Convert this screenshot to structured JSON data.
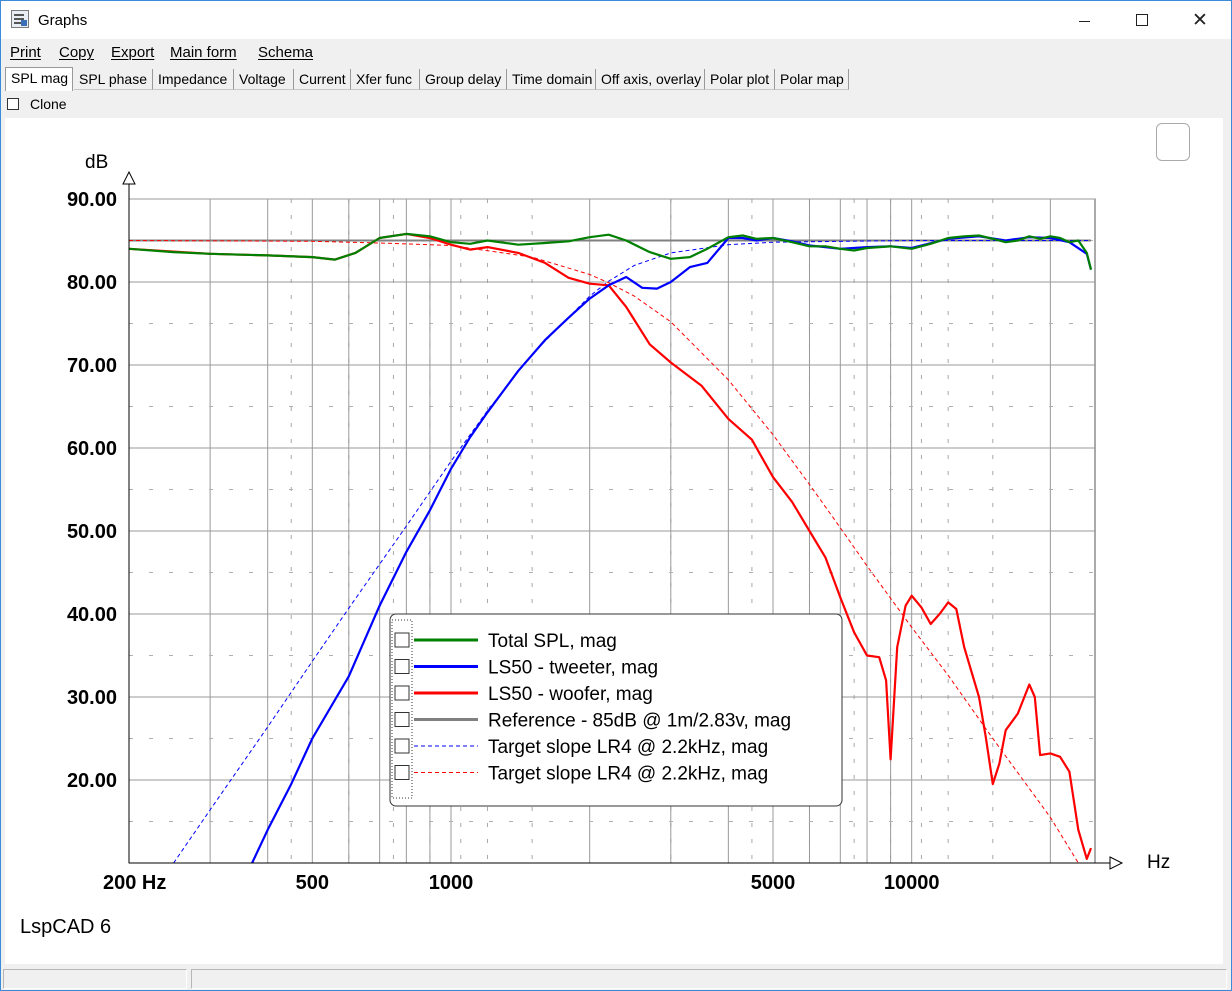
{
  "window": {
    "title": "Graphs",
    "icon": "graphs-app-icon",
    "controls": [
      "minimize",
      "maximize",
      "close"
    ]
  },
  "menu": [
    "Print",
    "Copy",
    "Export",
    "Main form",
    "Schema"
  ],
  "tabs": [
    "SPL mag",
    "SPL phase",
    "Impedance",
    "Voltage",
    "Current",
    "Xfer func",
    "Group delay",
    "Time domain",
    "Off axis, overlay",
    "Polar plot",
    "Polar map"
  ],
  "active_tab": "SPL mag",
  "clone": {
    "label": "Clone",
    "checked": false
  },
  "footer_text": "LspCAD 6",
  "chart_data": {
    "type": "line",
    "ylabel": "dB",
    "xlabel": "Hz",
    "x_scale": "log",
    "xlim": [
      200,
      25000
    ],
    "ylim": [
      10,
      90
    ],
    "grid": true,
    "y_ticks": [
      "90.00",
      "80.00",
      "70.00",
      "60.00",
      "50.00",
      "40.00",
      "30.00",
      "20.00"
    ],
    "x_ticks": [
      {
        "value": 200,
        "label": "200 Hz"
      },
      {
        "value": 500,
        "label": "500"
      },
      {
        "value": 1000,
        "label": "1000"
      },
      {
        "value": 5000,
        "label": "5000"
      },
      {
        "value": 10000,
        "label": "10000"
      }
    ],
    "legend_position": "bottom-center",
    "series": [
      {
        "name": "Total SPL, mag",
        "color": "#008000",
        "style": "solid",
        "points": [
          [
            200,
            84
          ],
          [
            250,
            83.6
          ],
          [
            300,
            83.4
          ],
          [
            400,
            83.2
          ],
          [
            500,
            83
          ],
          [
            560,
            82.7
          ],
          [
            620,
            83.5
          ],
          [
            700,
            85.3
          ],
          [
            800,
            85.8
          ],
          [
            900,
            85.5
          ],
          [
            1000,
            84.8
          ],
          [
            1100,
            84.6
          ],
          [
            1200,
            85
          ],
          [
            1400,
            84.5
          ],
          [
            1600,
            84.7
          ],
          [
            1800,
            84.9
          ],
          [
            2000,
            85.4
          ],
          [
            2200,
            85.7
          ],
          [
            2400,
            85
          ],
          [
            2700,
            83.6
          ],
          [
            3000,
            82.8
          ],
          [
            3300,
            83
          ],
          [
            3600,
            84
          ],
          [
            4000,
            85.4
          ],
          [
            4300,
            85.6
          ],
          [
            4600,
            85.2
          ],
          [
            5000,
            85.3
          ],
          [
            5500,
            84.8
          ],
          [
            6000,
            84.3
          ],
          [
            6500,
            84.3
          ],
          [
            7000,
            84
          ],
          [
            7500,
            83.8
          ],
          [
            8000,
            84.1
          ],
          [
            9000,
            84.3
          ],
          [
            10000,
            84
          ],
          [
            11000,
            84.6
          ],
          [
            12000,
            85.3
          ],
          [
            13000,
            85.5
          ],
          [
            14000,
            85.6
          ],
          [
            15000,
            85.2
          ],
          [
            16000,
            84.8
          ],
          [
            17000,
            85
          ],
          [
            18000,
            85.5
          ],
          [
            19000,
            85.2
          ],
          [
            20000,
            85.5
          ],
          [
            21000,
            85.3
          ],
          [
            22000,
            84.8
          ],
          [
            23000,
            85
          ],
          [
            24000,
            83.5
          ],
          [
            24500,
            81.5
          ]
        ]
      },
      {
        "name": "LS50 - tweeter, mag",
        "color": "#0000ff",
        "style": "solid",
        "points": [
          [
            370,
            10
          ],
          [
            400,
            14
          ],
          [
            450,
            19.5
          ],
          [
            500,
            25
          ],
          [
            600,
            32.5
          ],
          [
            700,
            41
          ],
          [
            800,
            47.5
          ],
          [
            900,
            52.5
          ],
          [
            1000,
            57.5
          ],
          [
            1100,
            61.3
          ],
          [
            1200,
            64.3
          ],
          [
            1400,
            69.3
          ],
          [
            1600,
            73
          ],
          [
            1800,
            75.7
          ],
          [
            2000,
            78
          ],
          [
            2200,
            79.6
          ],
          [
            2400,
            80.6
          ],
          [
            2600,
            79.3
          ],
          [
            2800,
            79.2
          ],
          [
            3000,
            80
          ],
          [
            3300,
            81.8
          ],
          [
            3600,
            82.3
          ],
          [
            4000,
            85.3
          ],
          [
            4300,
            85.3
          ],
          [
            4600,
            85
          ],
          [
            5000,
            85.3
          ],
          [
            5500,
            84.9
          ],
          [
            6000,
            84.4
          ],
          [
            6500,
            84.2
          ],
          [
            7000,
            84
          ],
          [
            8000,
            84.2
          ],
          [
            9000,
            84.3
          ],
          [
            10000,
            84.1
          ],
          [
            12000,
            85.2
          ],
          [
            14000,
            85.5
          ],
          [
            16000,
            85
          ],
          [
            18000,
            85.4
          ],
          [
            20000,
            85.3
          ],
          [
            22000,
            84.8
          ],
          [
            24000,
            83.4
          ],
          [
            24500,
            81.5
          ]
        ]
      },
      {
        "name": "LS50 - woofer, mag",
        "color": "#ff0000",
        "style": "solid",
        "points": [
          [
            200,
            84
          ],
          [
            300,
            83.4
          ],
          [
            400,
            83.2
          ],
          [
            500,
            83
          ],
          [
            560,
            82.7
          ],
          [
            620,
            83.5
          ],
          [
            700,
            85.3
          ],
          [
            800,
            85.8
          ],
          [
            900,
            85.3
          ],
          [
            1000,
            84.5
          ],
          [
            1100,
            83.9
          ],
          [
            1200,
            84.2
          ],
          [
            1400,
            83.5
          ],
          [
            1600,
            82.3
          ],
          [
            1800,
            80.5
          ],
          [
            2000,
            79.8
          ],
          [
            2200,
            79.6
          ],
          [
            2400,
            77
          ],
          [
            2700,
            72.5
          ],
          [
            3000,
            70.3
          ],
          [
            3500,
            67.5
          ],
          [
            4000,
            63.5
          ],
          [
            4500,
            61
          ],
          [
            5000,
            56.5
          ],
          [
            5500,
            53.5
          ],
          [
            6000,
            50
          ],
          [
            6500,
            46.8
          ],
          [
            7000,
            42
          ],
          [
            7500,
            37.8
          ],
          [
            8000,
            35
          ],
          [
            8500,
            34.8
          ],
          [
            8800,
            32
          ],
          [
            9000,
            22.5
          ],
          [
            9300,
            36
          ],
          [
            9700,
            41
          ],
          [
            10000,
            42.2
          ],
          [
            10500,
            40.8
          ],
          [
            11000,
            38.8
          ],
          [
            11500,
            40
          ],
          [
            12000,
            41.4
          ],
          [
            12500,
            40.6
          ],
          [
            13000,
            36
          ],
          [
            14000,
            30
          ],
          [
            14500,
            25
          ],
          [
            15000,
            19.5
          ],
          [
            15500,
            22
          ],
          [
            16000,
            26
          ],
          [
            17000,
            28
          ],
          [
            18000,
            31.5
          ],
          [
            18500,
            30
          ],
          [
            19000,
            23
          ],
          [
            20000,
            23.2
          ],
          [
            21000,
            22.8
          ],
          [
            22000,
            21
          ],
          [
            23000,
            14
          ],
          [
            24000,
            10.5
          ],
          [
            24500,
            11.8
          ]
        ]
      },
      {
        "name": "Reference - 85dB @ 1m/2.83v, mag",
        "color": "#808080",
        "style": "solid",
        "points": [
          [
            200,
            85
          ],
          [
            24500,
            85
          ]
        ]
      },
      {
        "name": "Target slope LR4 @ 2.2kHz, mag",
        "color": "#0000ff",
        "style": "dashed",
        "points": [
          [
            250,
            10
          ],
          [
            300,
            16.4
          ],
          [
            400,
            26.4
          ],
          [
            500,
            34.3
          ],
          [
            600,
            40.7
          ],
          [
            700,
            46
          ],
          [
            800,
            50.6
          ],
          [
            1000,
            58.4
          ],
          [
            1200,
            64.5
          ],
          [
            1500,
            71.3
          ],
          [
            2000,
            78.3
          ],
          [
            2200,
            80.1
          ],
          [
            2500,
            82
          ],
          [
            3000,
            83.5
          ],
          [
            4000,
            84.5
          ],
          [
            5000,
            84.8
          ],
          [
            10000,
            85
          ],
          [
            24500,
            85
          ]
        ]
      },
      {
        "name": "Target slope LR4 @ 2.2kHz, mag",
        "color": "#ff0000",
        "style": "dashed",
        "points": [
          [
            200,
            85
          ],
          [
            500,
            84.9
          ],
          [
            700,
            84.7
          ],
          [
            1000,
            84.4
          ],
          [
            1500,
            83
          ],
          [
            2000,
            80.9
          ],
          [
            2200,
            79.9
          ],
          [
            2500,
            78.3
          ],
          [
            3000,
            75.2
          ],
          [
            4000,
            68.2
          ],
          [
            5000,
            61.6
          ],
          [
            6000,
            55.6
          ],
          [
            7000,
            50.4
          ],
          [
            8000,
            45.8
          ],
          [
            10000,
            38.4
          ],
          [
            12000,
            32.6
          ],
          [
            15000,
            25
          ],
          [
            20000,
            15.5
          ],
          [
            23000,
            10
          ]
        ]
      }
    ]
  }
}
